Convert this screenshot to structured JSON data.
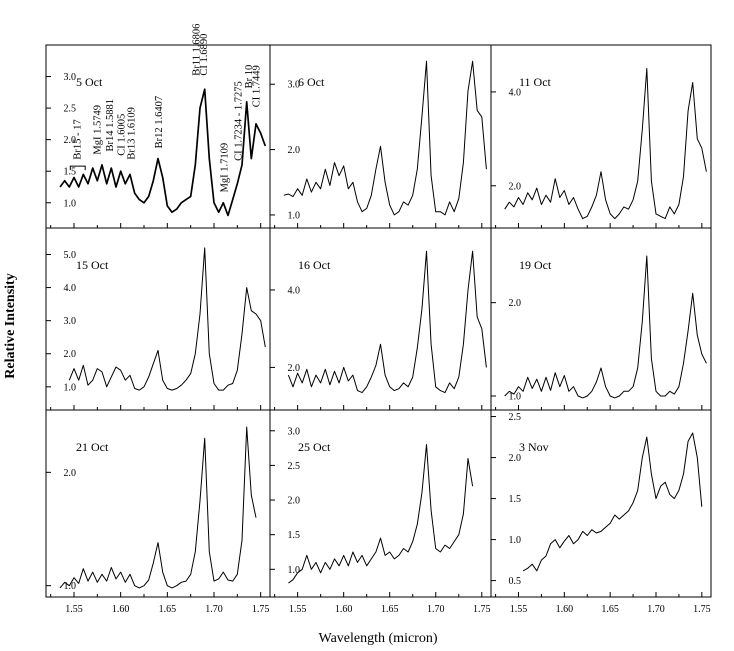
{
  "chart_data": {
    "type": "line",
    "xlabel": "Wavelength (micron)",
    "ylabel": "Relative Intensity",
    "xlim": [
      1.52,
      1.76
    ],
    "x_ticks": [
      "1.55",
      "1.60",
      "1.65",
      "1.70",
      "1.75"
    ],
    "x_tick_values": [
      1.55,
      1.6,
      1.65,
      1.7,
      1.75
    ],
    "line_color": "#000000",
    "grid": false,
    "panels": [
      {
        "label": "5 Oct",
        "ylim": [
          0.6,
          3.5
        ],
        "y_ticks": [
          "1.0",
          "1.5",
          "2.0",
          "2.5",
          "3.0"
        ],
        "y_tick_values": [
          1.0,
          1.5,
          2.0,
          2.5,
          3.0
        ],
        "x": [
          1.535,
          1.54,
          1.545,
          1.55,
          1.555,
          1.56,
          1.565,
          1.57,
          1.575,
          1.58,
          1.585,
          1.59,
          1.595,
          1.6,
          1.605,
          1.61,
          1.615,
          1.62,
          1.625,
          1.63,
          1.635,
          1.64,
          1.645,
          1.65,
          1.655,
          1.66,
          1.665,
          1.67,
          1.675,
          1.68,
          1.685,
          1.69,
          1.695,
          1.7,
          1.705,
          1.71,
          1.715,
          1.72,
          1.725,
          1.73,
          1.735,
          1.74,
          1.745,
          1.75,
          1.755
        ],
        "y": [
          1.25,
          1.35,
          1.25,
          1.4,
          1.25,
          1.45,
          1.3,
          1.55,
          1.35,
          1.6,
          1.3,
          1.55,
          1.25,
          1.5,
          1.3,
          1.45,
          1.15,
          1.05,
          1.0,
          1.1,
          1.35,
          1.7,
          1.4,
          0.95,
          0.85,
          0.9,
          1.0,
          1.05,
          1.1,
          1.6,
          2.5,
          2.8,
          1.7,
          1.0,
          0.85,
          1.0,
          0.8,
          1.05,
          1.3,
          1.6,
          2.6,
          1.7,
          2.25,
          2.1,
          1.9
        ]
      },
      {
        "label": "6 Oct",
        "ylim": [
          0.8,
          3.6
        ],
        "y_ticks": [
          "1.0",
          "2.0",
          "3.0"
        ],
        "y_tick_values": [
          1.0,
          2.0,
          3.0
        ],
        "x": [
          1.535,
          1.54,
          1.545,
          1.55,
          1.555,
          1.56,
          1.565,
          1.57,
          1.575,
          1.58,
          1.585,
          1.59,
          1.595,
          1.6,
          1.605,
          1.61,
          1.615,
          1.62,
          1.625,
          1.63,
          1.635,
          1.64,
          1.645,
          1.65,
          1.655,
          1.66,
          1.665,
          1.67,
          1.675,
          1.68,
          1.685,
          1.69,
          1.695,
          1.7,
          1.705,
          1.71,
          1.715,
          1.72,
          1.725,
          1.73,
          1.735,
          1.74,
          1.745,
          1.75,
          1.755
        ],
        "y": [
          1.3,
          1.32,
          1.28,
          1.4,
          1.3,
          1.55,
          1.35,
          1.5,
          1.4,
          1.7,
          1.45,
          1.8,
          1.6,
          1.75,
          1.4,
          1.5,
          1.2,
          1.05,
          1.1,
          1.3,
          1.7,
          2.05,
          1.5,
          1.15,
          1.0,
          1.05,
          1.2,
          1.15,
          1.3,
          1.7,
          2.5,
          3.35,
          1.6,
          1.05,
          1.05,
          1.0,
          1.2,
          1.05,
          1.25,
          1.8,
          2.9,
          3.35,
          2.6,
          2.5,
          1.7
        ]
      },
      {
        "label": "11 Oct",
        "ylim": [
          1.1,
          5.0
        ],
        "y_ticks": [
          "2.0",
          "4.0"
        ],
        "y_tick_values": [
          2.0,
          4.0
        ],
        "x": [
          1.535,
          1.54,
          1.545,
          1.55,
          1.555,
          1.56,
          1.565,
          1.57,
          1.575,
          1.58,
          1.585,
          1.59,
          1.595,
          1.6,
          1.605,
          1.61,
          1.615,
          1.62,
          1.625,
          1.63,
          1.635,
          1.64,
          1.645,
          1.65,
          1.655,
          1.66,
          1.665,
          1.67,
          1.675,
          1.68,
          1.685,
          1.69,
          1.695,
          1.7,
          1.705,
          1.71,
          1.715,
          1.72,
          1.725,
          1.73,
          1.735,
          1.74,
          1.745,
          1.75,
          1.755
        ],
        "y": [
          1.5,
          1.65,
          1.55,
          1.75,
          1.6,
          1.85,
          1.7,
          1.95,
          1.6,
          1.8,
          1.65,
          2.15,
          1.75,
          1.9,
          1.6,
          1.75,
          1.5,
          1.3,
          1.35,
          1.55,
          1.8,
          2.3,
          1.7,
          1.4,
          1.3,
          1.4,
          1.55,
          1.5,
          1.7,
          2.1,
          3.2,
          4.5,
          2.1,
          1.4,
          1.35,
          1.3,
          1.55,
          1.4,
          1.6,
          2.2,
          3.6,
          4.2,
          3.0,
          2.8,
          2.3
        ]
      },
      {
        "label": "15 Oct",
        "ylim": [
          0.3,
          5.8
        ],
        "y_ticks": [
          "1.0",
          "2.0",
          "3.0",
          "4.0",
          "5.0"
        ],
        "y_tick_values": [
          1.0,
          2.0,
          3.0,
          4.0,
          5.0
        ],
        "x": [
          1.545,
          1.55,
          1.555,
          1.56,
          1.565,
          1.57,
          1.575,
          1.58,
          1.585,
          1.59,
          1.595,
          1.6,
          1.605,
          1.61,
          1.615,
          1.62,
          1.625,
          1.63,
          1.635,
          1.64,
          1.645,
          1.65,
          1.655,
          1.66,
          1.665,
          1.67,
          1.675,
          1.68,
          1.685,
          1.69,
          1.695,
          1.7,
          1.705,
          1.71,
          1.715,
          1.72,
          1.725,
          1.73,
          1.735,
          1.74,
          1.745,
          1.75,
          1.755
        ],
        "y": [
          1.2,
          1.55,
          1.2,
          1.65,
          1.05,
          1.2,
          1.55,
          1.45,
          1.0,
          1.3,
          1.6,
          1.5,
          1.2,
          1.35,
          0.95,
          0.9,
          1.0,
          1.3,
          1.7,
          2.1,
          1.2,
          0.95,
          0.9,
          0.95,
          1.05,
          1.2,
          1.4,
          2.0,
          3.2,
          5.2,
          2.0,
          1.1,
          0.9,
          0.9,
          1.05,
          1.1,
          1.5,
          2.6,
          4.0,
          3.3,
          3.2,
          3.0,
          2.2
        ]
      },
      {
        "label": "16 Oct",
        "ylim": [
          0.9,
          5.6
        ],
        "y_ticks": [
          "2.0",
          "4.0"
        ],
        "y_tick_values": [
          2.0,
          4.0
        ],
        "x": [
          1.54,
          1.545,
          1.55,
          1.555,
          1.56,
          1.565,
          1.57,
          1.575,
          1.58,
          1.585,
          1.59,
          1.595,
          1.6,
          1.605,
          1.61,
          1.615,
          1.62,
          1.625,
          1.63,
          1.635,
          1.64,
          1.645,
          1.65,
          1.655,
          1.66,
          1.665,
          1.67,
          1.675,
          1.68,
          1.685,
          1.69,
          1.695,
          1.7,
          1.705,
          1.71,
          1.715,
          1.72,
          1.725,
          1.73,
          1.735,
          1.74,
          1.745,
          1.75,
          1.755
        ],
        "y": [
          1.8,
          1.5,
          1.85,
          1.6,
          1.95,
          1.5,
          1.8,
          1.6,
          1.95,
          1.55,
          1.9,
          1.6,
          2.0,
          1.65,
          1.8,
          1.4,
          1.35,
          1.5,
          1.75,
          2.05,
          2.6,
          1.8,
          1.5,
          1.4,
          1.45,
          1.6,
          1.5,
          1.75,
          2.5,
          3.5,
          5.0,
          2.6,
          1.5,
          1.4,
          1.35,
          1.6,
          1.45,
          1.75,
          2.6,
          4.0,
          5.0,
          3.3,
          3.0,
          2.0
        ]
      },
      {
        "label": "19 Oct",
        "ylim": [
          0.85,
          2.8
        ],
        "y_ticks": [
          "1.0",
          "2.0"
        ],
        "y_tick_values": [
          1.0,
          2.0
        ],
        "x": [
          1.535,
          1.54,
          1.545,
          1.55,
          1.555,
          1.56,
          1.565,
          1.57,
          1.575,
          1.58,
          1.585,
          1.59,
          1.595,
          1.6,
          1.605,
          1.61,
          1.615,
          1.62,
          1.625,
          1.63,
          1.635,
          1.64,
          1.645,
          1.65,
          1.655,
          1.66,
          1.665,
          1.67,
          1.675,
          1.68,
          1.685,
          1.69,
          1.695,
          1.7,
          1.705,
          1.71,
          1.715,
          1.72,
          1.725,
          1.73,
          1.735,
          1.74,
          1.745,
          1.75,
          1.755
        ],
        "y": [
          1.0,
          1.05,
          1.02,
          1.1,
          1.05,
          1.2,
          1.08,
          1.18,
          1.05,
          1.2,
          1.06,
          1.25,
          1.1,
          1.22,
          1.05,
          1.1,
          1.0,
          0.98,
          1.0,
          1.05,
          1.15,
          1.3,
          1.1,
          1.0,
          0.98,
          1.0,
          1.05,
          1.05,
          1.1,
          1.3,
          1.8,
          2.5,
          1.4,
          1.05,
          1.0,
          1.0,
          1.05,
          1.02,
          1.1,
          1.35,
          1.7,
          2.1,
          1.65,
          1.45,
          1.35
        ]
      },
      {
        "label": "21 Oct",
        "ylim": [
          0.9,
          2.55
        ],
        "y_ticks": [
          "1.0",
          "2.0"
        ],
        "y_tick_values": [
          1.0,
          2.0
        ],
        "x": [
          1.535,
          1.54,
          1.545,
          1.55,
          1.555,
          1.56,
          1.565,
          1.57,
          1.575,
          1.58,
          1.585,
          1.59,
          1.595,
          1.6,
          1.605,
          1.61,
          1.615,
          1.62,
          1.625,
          1.63,
          1.635,
          1.64,
          1.645,
          1.65,
          1.655,
          1.66,
          1.665,
          1.67,
          1.675,
          1.68,
          1.685,
          1.69,
          1.695,
          1.7,
          1.705,
          1.71,
          1.715,
          1.72,
          1.725,
          1.73,
          1.735,
          1.74,
          1.745
        ],
        "y": [
          0.98,
          1.03,
          1.0,
          1.07,
          1.02,
          1.15,
          1.04,
          1.12,
          1.03,
          1.1,
          1.04,
          1.16,
          1.06,
          1.12,
          1.03,
          1.1,
          1.0,
          0.98,
          1.0,
          1.05,
          1.2,
          1.38,
          1.12,
          1.0,
          0.98,
          1.0,
          1.03,
          1.04,
          1.1,
          1.3,
          1.75,
          2.3,
          1.3,
          1.04,
          1.06,
          1.12,
          1.05,
          1.04,
          1.1,
          1.4,
          2.4,
          1.8,
          1.6
        ]
      },
      {
        "label": "25 Oct",
        "ylim": [
          0.6,
          3.3
        ],
        "y_ticks": [
          "1.0",
          "1.5",
          "2.0",
          "2.5",
          "3.0"
        ],
        "y_tick_values": [
          1.0,
          1.5,
          2.0,
          2.5,
          3.0
        ],
        "x": [
          1.54,
          1.545,
          1.55,
          1.555,
          1.56,
          1.565,
          1.57,
          1.575,
          1.58,
          1.585,
          1.59,
          1.595,
          1.6,
          1.605,
          1.61,
          1.615,
          1.62,
          1.625,
          1.63,
          1.635,
          1.64,
          1.645,
          1.65,
          1.655,
          1.66,
          1.665,
          1.67,
          1.675,
          1.68,
          1.685,
          1.69,
          1.695,
          1.7,
          1.705,
          1.71,
          1.715,
          1.72,
          1.725,
          1.73,
          1.735,
          1.74
        ],
        "y": [
          0.8,
          0.85,
          0.95,
          1.0,
          1.2,
          1.0,
          1.1,
          0.95,
          1.1,
          1.0,
          1.15,
          1.05,
          1.2,
          1.05,
          1.25,
          1.1,
          1.2,
          1.05,
          1.15,
          1.25,
          1.45,
          1.2,
          1.25,
          1.15,
          1.2,
          1.3,
          1.25,
          1.4,
          1.65,
          2.1,
          2.8,
          1.85,
          1.3,
          1.25,
          1.35,
          1.3,
          1.4,
          1.5,
          1.8,
          2.6,
          2.2
        ]
      },
      {
        "label": "3 Nov",
        "ylim": [
          0.3,
          2.58
        ],
        "y_ticks": [
          "0.5",
          "1.0",
          "1.5",
          "2.0",
          "2.5"
        ],
        "y_tick_values": [
          0.5,
          1.0,
          1.5,
          2.0,
          2.5
        ],
        "x": [
          1.555,
          1.56,
          1.565,
          1.57,
          1.575,
          1.58,
          1.585,
          1.59,
          1.595,
          1.6,
          1.605,
          1.61,
          1.615,
          1.62,
          1.625,
          1.63,
          1.635,
          1.64,
          1.645,
          1.65,
          1.655,
          1.66,
          1.665,
          1.67,
          1.675,
          1.68,
          1.685,
          1.69,
          1.695,
          1.7,
          1.705,
          1.71,
          1.715,
          1.72,
          1.725,
          1.73,
          1.735,
          1.74,
          1.745,
          1.75
        ],
        "y": [
          0.62,
          0.65,
          0.7,
          0.62,
          0.75,
          0.8,
          0.95,
          1.0,
          0.9,
          0.98,
          1.05,
          0.95,
          1.0,
          1.1,
          1.05,
          1.12,
          1.08,
          1.1,
          1.15,
          1.2,
          1.3,
          1.25,
          1.3,
          1.35,
          1.45,
          1.6,
          2.0,
          2.25,
          1.8,
          1.5,
          1.65,
          1.7,
          1.55,
          1.5,
          1.6,
          1.8,
          2.2,
          2.3,
          2.0,
          1.4
        ]
      }
    ],
    "annotations": [
      {
        "text": "Br15 - 17",
        "x": 1.553
      },
      {
        "text": "MgI 1.5749",
        "x": 1.5749
      },
      {
        "text": "Br14 1.5881",
        "x": 1.5881
      },
      {
        "text": "CI 1.6005",
        "x": 1.6005
      },
      {
        "text": "Br13 1.6109",
        "x": 1.6109
      },
      {
        "text": "Br12 1.6407",
        "x": 1.6407
      },
      {
        "text": "Br11 1.6806",
        "x": 1.6806
      },
      {
        "text": "CI 1.6890",
        "x": 1.689
      },
      {
        "text": "MgI 1.7109",
        "x": 1.7109
      },
      {
        "text": "CI 1.7234 - 1.7275",
        "x": 1.7255
      },
      {
        "text": "Br 10",
        "x": 1.7367
      },
      {
        "text": "CI 1.7449",
        "x": 1.7449
      }
    ]
  }
}
